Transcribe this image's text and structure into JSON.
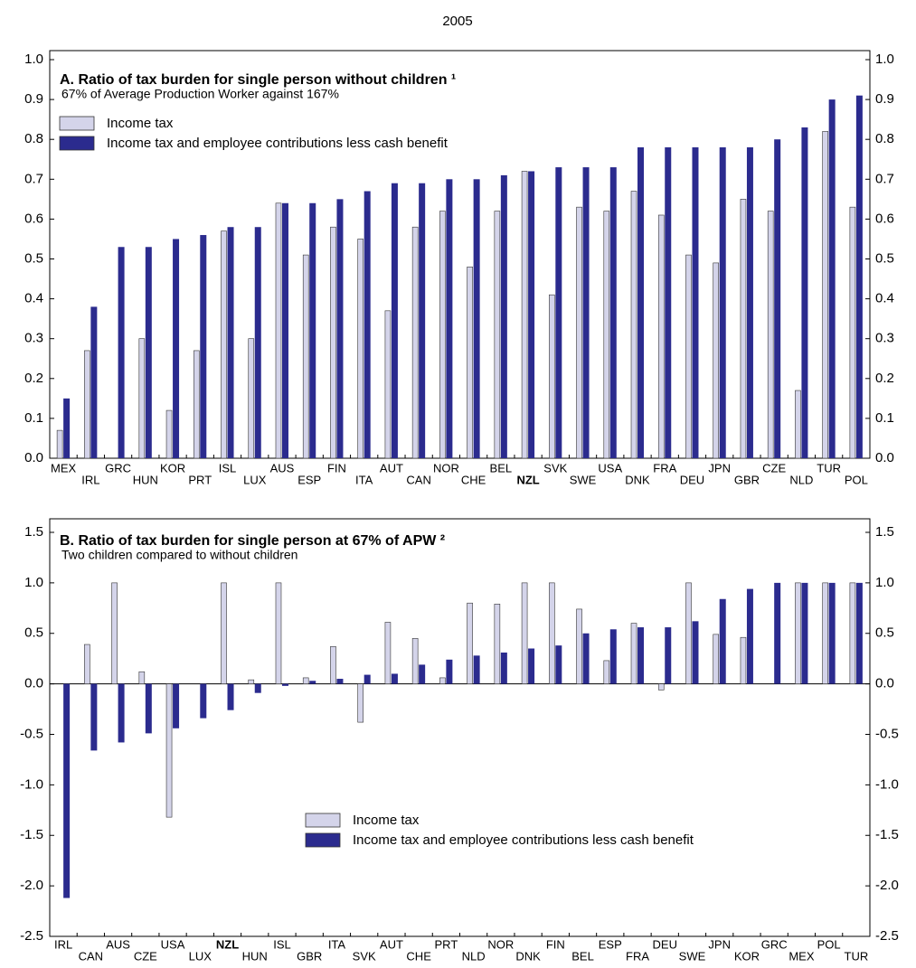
{
  "title": "2005",
  "chart_data": [
    {
      "type": "bar",
      "title": "A. Ratio of tax burden for single person without children ¹",
      "subtitle": "67% of Average Production Worker against 167%",
      "categories": [
        "MEX",
        "IRL",
        "GRC",
        "HUN",
        "KOR",
        "PRT",
        "ISL",
        "LUX",
        "AUS",
        "ESP",
        "FIN",
        "ITA",
        "AUT",
        "CAN",
        "NOR",
        "CHE",
        "BEL",
        "NZL",
        "SVK",
        "SWE",
        "USA",
        "DNK",
        "FRA",
        "DEU",
        "JPN",
        "GBR",
        "CZE",
        "NLD",
        "TUR",
        "POL"
      ],
      "highlight": "NZL",
      "series": [
        {
          "name": "Income tax",
          "color": "#d4d4ea",
          "values": [
            0.07,
            0.27,
            0,
            0.3,
            0.12,
            0.27,
            0.57,
            0.3,
            0.64,
            0.51,
            0.58,
            0.55,
            0.37,
            0.58,
            0.62,
            0.48,
            0.62,
            0.72,
            0.41,
            0.63,
            0.62,
            0.67,
            0.61,
            0.51,
            0.49,
            0.65,
            0.62,
            0.17,
            0.82,
            0.63
          ]
        },
        {
          "name": "Income tax and employee contributions less cash benefit",
          "color": "#2b2b8e",
          "values": [
            0.15,
            0.38,
            0.53,
            0.53,
            0.55,
            0.56,
            0.58,
            0.58,
            0.64,
            0.64,
            0.65,
            0.67,
            0.69,
            0.69,
            0.7,
            0.7,
            0.71,
            0.72,
            0.73,
            0.73,
            0.73,
            0.78,
            0.78,
            0.78,
            0.78,
            0.78,
            0.8,
            0.83,
            0.9,
            0.91
          ]
        }
      ],
      "ylim": [
        0,
        1.0
      ],
      "yticks": [
        {
          "value": 0,
          "label": "0.0"
        },
        0.1,
        0.2,
        0.3,
        0.4,
        0.5,
        0.6,
        0.7,
        0.8,
        0.9,
        {
          "value": 1,
          "label": "1.0"
        }
      ],
      "legend": "upper left"
    },
    {
      "type": "bar",
      "title": "B. Ratio of tax burden for single person at 67% of APW ²",
      "subtitle": "Two children compared to without children",
      "categories": [
        "IRL",
        "CAN",
        "AUS",
        "CZE",
        "USA",
        "LUX",
        "NZL",
        "HUN",
        "ISL",
        "GBR",
        "ITA",
        "SVK",
        "AUT",
        "CHE",
        "PRT",
        "NLD",
        "NOR",
        "DNK",
        "FIN",
        "BEL",
        "ESP",
        "FRA",
        "DEU",
        "SWE",
        "JPN",
        "KOR",
        "GRC",
        "MEX",
        "POL",
        "TUR"
      ],
      "highlight": "NZL",
      "series": [
        {
          "name": "Income tax",
          "color": "#d4d4ea",
          "values": [
            0,
            0.39,
            1.0,
            0.12,
            -1.32,
            0,
            1.0,
            0.04,
            1.0,
            0.06,
            0.37,
            -0.38,
            0.61,
            0.45,
            0.06,
            0.8,
            0.79,
            1.0,
            1.0,
            0.74,
            0.23,
            0.6,
            -0.06,
            1.0,
            0.49,
            0.46,
            0,
            1.0,
            1.0,
            1.0
          ]
        },
        {
          "name": "Income tax and employee contributions less cash benefit",
          "color": "#2b2b8e",
          "values": [
            -2.12,
            -0.66,
            -0.58,
            -0.49,
            -0.44,
            -0.34,
            -0.26,
            -0.09,
            -0.02,
            0.03,
            0.05,
            0.09,
            0.1,
            0.19,
            0.24,
            0.28,
            0.31,
            0.35,
            0.38,
            0.5,
            0.54,
            0.56,
            0.56,
            0.62,
            0.84,
            0.94,
            1.0,
            1.0,
            1.0,
            1.0
          ]
        }
      ],
      "ylim": [
        -2.5,
        1.5
      ],
      "yticks": [
        1.5,
        {
          "value": 1,
          "label": "1.0"
        },
        0.5,
        {
          "value": 0,
          "label": "0.0"
        },
        -0.5,
        {
          "value": -1,
          "label": "-1.0"
        },
        -1.5,
        {
          "value": -2,
          "label": "-2.0"
        },
        -2.5
      ],
      "legend": "center"
    }
  ]
}
